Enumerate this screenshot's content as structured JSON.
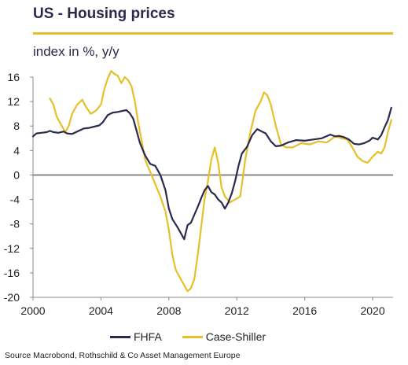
{
  "header": {
    "title": "US - Housing prices",
    "subtitle": "index in %, y/y"
  },
  "legend": {
    "items": [
      {
        "label": "FHFA",
        "color": "#2b2a4c"
      },
      {
        "label": "Case-Shiller",
        "color": "#e5c029"
      }
    ]
  },
  "footer": {
    "source": "Source Macrobond, Rothschild & Co Asset Management Europe"
  },
  "colors": {
    "accent_rule": "#e5c029",
    "zero_line": "#888888",
    "axis": "#888888"
  },
  "chart_data": {
    "type": "line",
    "title": "US - Housing prices",
    "subtitle": "index in %, y/y",
    "xlabel": "",
    "ylabel": "",
    "xlim": [
      2000,
      2021.2
    ],
    "ylim": [
      -20,
      16
    ],
    "xticks": [
      2000,
      2004,
      2008,
      2012,
      2016,
      2020
    ],
    "yticks": [
      -20,
      -16,
      -12,
      -8,
      -4,
      0,
      4,
      8,
      12,
      16
    ],
    "grid": false,
    "legend_position": "bottom",
    "series": [
      {
        "name": "FHFA",
        "color": "#2b2a4c",
        "x": [
          2000.0,
          2000.2,
          2000.5,
          2000.8,
          2001.0,
          2001.2,
          2001.5,
          2001.8,
          2002.0,
          2002.3,
          2002.6,
          2003.0,
          2003.3,
          2003.6,
          2003.9,
          2004.1,
          2004.4,
          2004.7,
          2005.0,
          2005.3,
          2005.5,
          2005.7,
          2005.9,
          2006.1,
          2006.3,
          2006.6,
          2006.9,
          2007.2,
          2007.5,
          2007.8,
          2008.0,
          2008.2,
          2008.5,
          2008.7,
          2008.9,
          2009.1,
          2009.3,
          2009.5,
          2009.7,
          2009.9,
          2010.1,
          2010.3,
          2010.5,
          2010.7,
          2010.9,
          2011.1,
          2011.3,
          2011.5,
          2011.7,
          2011.9,
          2012.1,
          2012.3,
          2012.6,
          2012.9,
          2013.2,
          2013.4,
          2013.7,
          2014.0,
          2014.3,
          2014.6,
          2015.0,
          2015.5,
          2016.0,
          2016.5,
          2017.0,
          2017.5,
          2017.8,
          2018.0,
          2018.3,
          2018.6,
          2018.9,
          2019.2,
          2019.5,
          2019.8,
          2020.0,
          2020.3,
          2020.5,
          2020.7,
          2020.9,
          2021.1
        ],
        "y": [
          6.3,
          6.8,
          6.9,
          7.0,
          7.2,
          7.0,
          6.9,
          7.1,
          6.8,
          6.7,
          7.1,
          7.6,
          7.7,
          7.9,
          8.1,
          8.6,
          9.8,
          10.2,
          10.3,
          10.5,
          10.6,
          10.1,
          9.2,
          7.2,
          5.2,
          3.2,
          1.8,
          1.5,
          0.0,
          -2.5,
          -5.5,
          -7.2,
          -8.5,
          -9.5,
          -10.5,
          -8.2,
          -7.8,
          -6.5,
          -5.2,
          -3.8,
          -2.5,
          -1.8,
          -2.8,
          -3.2,
          -4.0,
          -4.5,
          -5.5,
          -4.5,
          -3.0,
          -1.0,
          1.5,
          3.5,
          4.6,
          6.5,
          7.5,
          7.2,
          6.8,
          5.5,
          4.7,
          4.8,
          5.3,
          5.7,
          5.6,
          5.8,
          6.0,
          6.6,
          6.3,
          6.4,
          6.2,
          5.8,
          5.1,
          5.0,
          5.2,
          5.6,
          6.1,
          5.8,
          6.5,
          7.8,
          9.0,
          11.0
        ]
      },
      {
        "name": "Case-Shiller",
        "color": "#e5c029",
        "x": [
          2001.0,
          2001.2,
          2001.4,
          2001.7,
          2001.9,
          2002.1,
          2002.3,
          2002.6,
          2002.9,
          2003.1,
          2003.4,
          2003.7,
          2004.0,
          2004.2,
          2004.4,
          2004.6,
          2004.8,
          2005.0,
          2005.2,
          2005.4,
          2005.6,
          2005.8,
          2006.0,
          2006.2,
          2006.4,
          2006.6,
          2006.9,
          2007.2,
          2007.5,
          2007.8,
          2008.0,
          2008.2,
          2008.4,
          2008.6,
          2008.8,
          2009.0,
          2009.1,
          2009.3,
          2009.5,
          2009.7,
          2009.9,
          2010.1,
          2010.3,
          2010.5,
          2010.7,
          2010.9,
          2011.1,
          2011.3,
          2011.6,
          2011.9,
          2012.2,
          2012.5,
          2012.8,
          2013.1,
          2013.4,
          2013.6,
          2013.8,
          2014.0,
          2014.3,
          2014.6,
          2014.9,
          2015.3,
          2015.8,
          2016.3,
          2016.8,
          2017.3,
          2017.8,
          2018.2,
          2018.5,
          2018.8,
          2019.1,
          2019.4,
          2019.7,
          2020.0,
          2020.3,
          2020.5,
          2020.7,
          2020.9,
          2021.1
        ],
        "y": [
          12.5,
          11.5,
          9.5,
          8.0,
          7.0,
          8.0,
          10.0,
          11.5,
          12.3,
          11.2,
          10.0,
          10.5,
          11.5,
          14.0,
          15.8,
          17.0,
          16.5,
          16.2,
          15.0,
          16.0,
          15.5,
          14.5,
          12.0,
          8.5,
          5.5,
          2.5,
          0.5,
          -1.5,
          -3.5,
          -6.0,
          -9.0,
          -13.0,
          -15.5,
          -16.5,
          -17.5,
          -18.5,
          -19.0,
          -18.5,
          -17.0,
          -13.0,
          -8.5,
          -4.0,
          -1.0,
          2.5,
          4.5,
          2.0,
          -2.0,
          -3.5,
          -4.5,
          -4.0,
          -3.5,
          2.5,
          7.0,
          10.5,
          12.0,
          13.5,
          13.0,
          11.5,
          8.0,
          5.0,
          4.5,
          4.5,
          5.2,
          5.0,
          5.5,
          5.3,
          6.3,
          6.0,
          5.8,
          4.5,
          3.0,
          2.3,
          2.0,
          3.0,
          3.8,
          3.5,
          4.5,
          7.0,
          9.0
        ]
      }
    ]
  }
}
